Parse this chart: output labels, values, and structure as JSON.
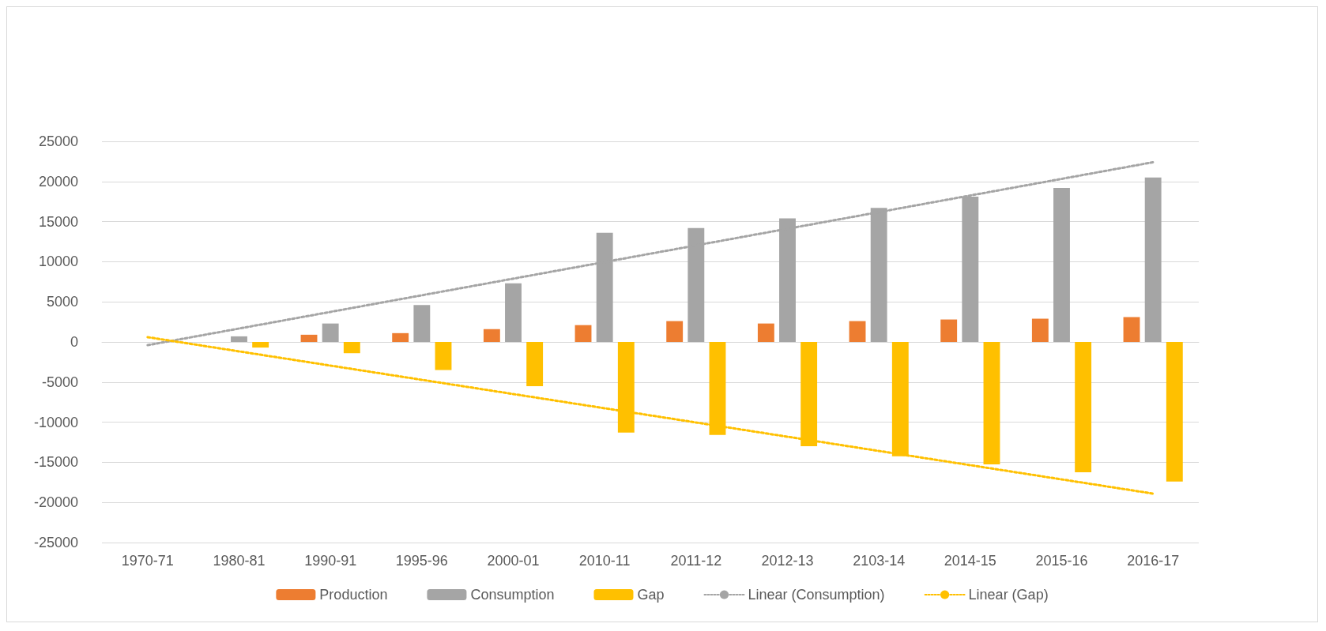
{
  "chart_data": {
    "type": "bar",
    "categories": [
      "1970-71",
      "1980-81",
      "1990-91",
      "1995-96",
      "2000-01",
      "2010-11",
      "2011-12",
      "2012-13",
      "2103-14",
      "2014-15",
      "2015-16",
      "2016-17"
    ],
    "series": [
      {
        "name": "Production",
        "color": "#ed7d31",
        "values": [
          0,
          0,
          900,
          1100,
          1600,
          2100,
          2600,
          2300,
          2600,
          2800,
          2900,
          3100
        ]
      },
      {
        "name": "Consumption",
        "color": "#a5a5a5",
        "values": [
          0,
          700,
          2300,
          4600,
          7300,
          13600,
          14200,
          15400,
          16700,
          18100,
          19200,
          20500
        ]
      },
      {
        "name": "Gap",
        "color": "#ffc000",
        "values": [
          0,
          -700,
          -1400,
          -3500,
          -5500,
          -11300,
          -11600,
          -13000,
          -14250,
          -15250,
          -16250,
          -17400
        ]
      },
      {
        "name": "Linear (Consumption)",
        "type": "line",
        "color": "#a5a5a5",
        "line_style": "dotted",
        "marker": "none",
        "x": [
          "1970-71",
          "2016-17"
        ],
        "values": [
          -400,
          22400
        ]
      },
      {
        "name": "Linear (Gap)",
        "type": "line",
        "color": "#ffc000",
        "line_style": "dotted",
        "marker": "none",
        "x": [
          "1970-71",
          "2016-17"
        ],
        "values": [
          600,
          -18900
        ]
      }
    ],
    "ylim": [
      -25000,
      25000
    ],
    "yticks": [
      -25000,
      -20000,
      -15000,
      -10000,
      -5000,
      0,
      5000,
      10000,
      15000,
      20000,
      25000
    ],
    "grid": "y",
    "legend": "bottom"
  }
}
